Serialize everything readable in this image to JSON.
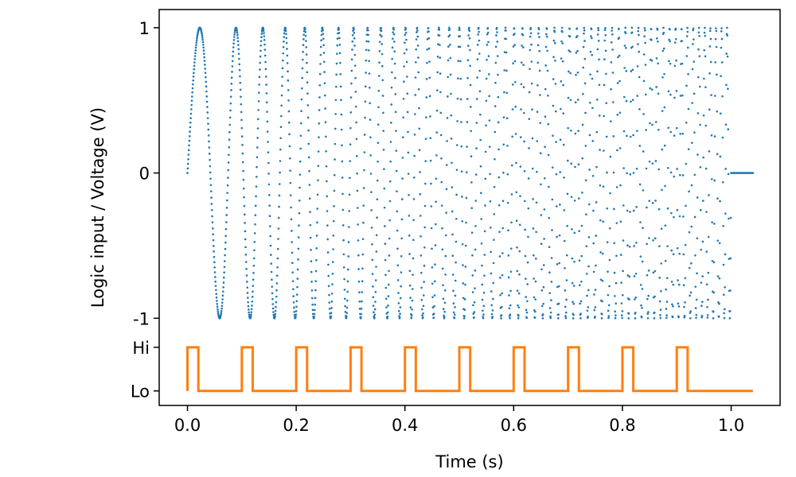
{
  "chart_data": {
    "type": "scatter",
    "title": "",
    "xlabel": "Time (s)",
    "ylabel": "Logic input / Voltage (V)",
    "xlim": [
      -0.052,
      1.09
    ],
    "ylim": [
      -1.6,
      1.125
    ],
    "grid": false,
    "legend": "none",
    "x_ticks": [
      {
        "value": 0.0,
        "label": "0.0"
      },
      {
        "value": 0.2,
        "label": "0.2"
      },
      {
        "value": 0.4,
        "label": "0.4"
      },
      {
        "value": 0.6,
        "label": "0.6"
      },
      {
        "value": 0.8,
        "label": "0.8"
      },
      {
        "value": 1.0,
        "label": "1.0"
      }
    ],
    "y_ticks": [
      {
        "value": 1,
        "label": "1"
      },
      {
        "value": 0,
        "label": "0"
      },
      {
        "value": -1,
        "label": "-1"
      },
      {
        "value": -1.2,
        "label": "Hi"
      },
      {
        "value": -1.5,
        "label": "Lo"
      }
    ],
    "series": [
      {
        "color": "#1f77b4",
        "style": "dots",
        "signal": "chirp sine",
        "amplitude": 1,
        "start_frequency_hz": 10,
        "end_frequency_hz": 100,
        "t_start": 0,
        "t_end": 1.0,
        "sample_step": 0.0005,
        "trailing_zero_until": 1.04
      },
      {
        "color": "#ff7f0e",
        "style": "step",
        "signal": "logic pulses",
        "hi_level": -1.2,
        "lo_level": -1.5,
        "pulse_starts": [
          0.0,
          0.1,
          0.2,
          0.3,
          0.4,
          0.5,
          0.6,
          0.7,
          0.8,
          0.9
        ],
        "pulse_width": 0.02,
        "t_end": 1.04
      }
    ]
  }
}
